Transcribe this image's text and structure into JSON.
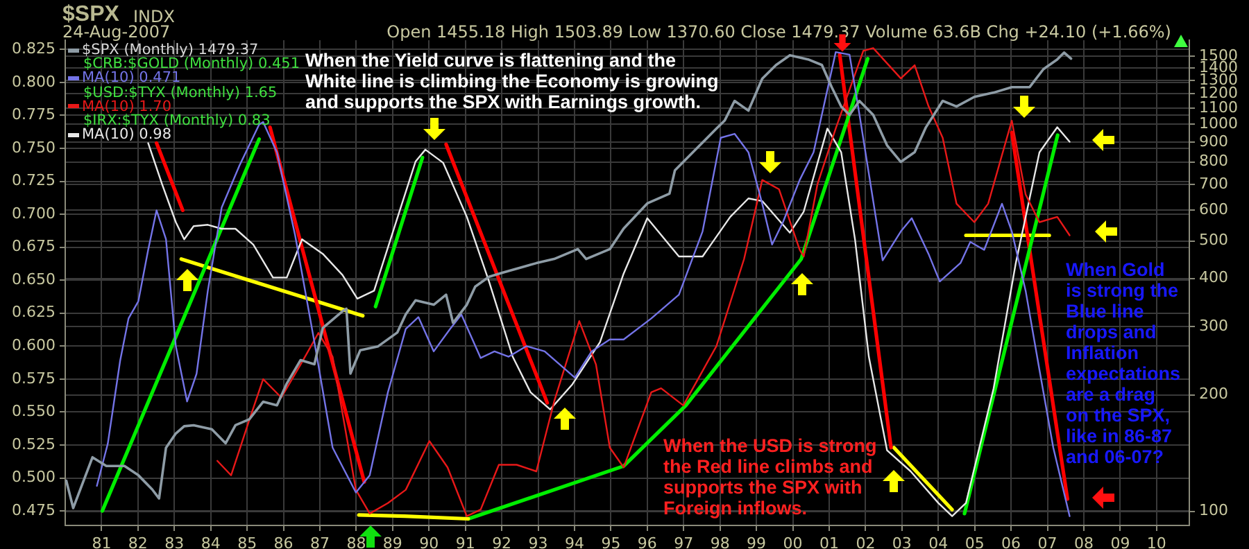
{
  "chart_data": {
    "type": "line",
    "title": "$SPX",
    "subtitle": "24-Aug-2007",
    "annotations": [
      "$CRB:$GOLD (Monthly) 0.451",
      "$USD:$TYX (Monthly) 1.65",
      "$IRX:$TYX (Monthly) 0.83",
      "INDX",
      "Open 1455.18 High 1503.89 Low 1370.60 Close 1479.37 Volume 63.6B Chg +24.10 (+1.66%)",
      "When the Yield curve is flattening and the\nWhite line is climbing the Economy is growing\nand supports the SPX with Earnings growth.",
      "When the USD is strong\nthe Red line climbs and\nsupports the SPX with\nForeign inflows.",
      "When Gold\nis strong the\nBlue line\ndrops and\nInflation\nexpectations\nare a drag\non the SPX,\nlike in 86-87\nand 06-07?"
    ],
    "xlim": [
      1980,
      2010.9
    ],
    "xticks": [
      {
        "value": 1981,
        "label": "81"
      },
      {
        "value": 1982,
        "label": "82"
      },
      {
        "value": 1983,
        "label": "83"
      },
      {
        "value": 1984,
        "label": "84"
      },
      {
        "value": 1985,
        "label": "85"
      },
      {
        "value": 1986,
        "label": "86"
      },
      {
        "value": 1987,
        "label": "87"
      },
      {
        "value": 1988,
        "label": "88"
      },
      {
        "value": 1989,
        "label": "89"
      },
      {
        "value": 1990,
        "label": "90"
      },
      {
        "value": 1991,
        "label": "91"
      },
      {
        "value": 1992,
        "label": "92"
      },
      {
        "value": 1993,
        "label": "93"
      },
      {
        "value": 1994,
        "label": "94"
      },
      {
        "value": 1995,
        "label": "95"
      },
      {
        "value": 1996,
        "label": "96"
      },
      {
        "value": 1997,
        "label": "97"
      },
      {
        "value": 1998,
        "label": "98"
      },
      {
        "value": 1999,
        "label": "99"
      },
      {
        "value": 2000,
        "label": "00"
      },
      {
        "value": 2001,
        "label": "01"
      },
      {
        "value": 2002,
        "label": "02"
      },
      {
        "value": 2003,
        "label": "03"
      },
      {
        "value": 2004,
        "label": "04"
      },
      {
        "value": 2005,
        "label": "05"
      },
      {
        "value": 2006,
        "label": "06"
      },
      {
        "value": 2007,
        "label": "07"
      },
      {
        "value": 2008,
        "label": "08"
      },
      {
        "value": 2009,
        "label": "09"
      },
      {
        "value": 2010,
        "label": "10"
      }
    ],
    "ylim": [
      0.464,
      0.832
    ],
    "yticks": [
      0.475,
      {
        "value": 0.5,
        "label": "0.500"
      },
      0.525,
      {
        "value": 0.55,
        "label": "0.550"
      },
      0.575,
      {
        "value": 0.6,
        "label": "0.600"
      },
      0.625,
      {
        "value": 0.65,
        "label": "0.650"
      },
      0.675,
      {
        "value": 0.7,
        "label": "0.700"
      },
      0.725,
      {
        "value": 0.75,
        "label": "0.750"
      },
      0.775,
      {
        "value": 0.8,
        "label": "0.800"
      },
      0.825
    ],
    "y2lim": [
      92,
      1650
    ],
    "y2ticks": [
      100,
      200,
      300,
      400,
      500,
      600,
      700,
      800,
      900,
      1000,
      1100,
      1200,
      1300,
      1400,
      1500
    ],
    "log": "y2",
    "grid": true,
    "legend": "top left",
    "marker": "none",
    "line_style": "solid",
    "series": [
      {
        "name": "$SPX (Monthly) 1479.37",
        "color": "#8e9ca6",
        "axis": "y2",
        "x": [
          1980.03,
          1980.22,
          1980.75,
          1981.13,
          1981.63,
          1982.01,
          1982.39,
          1982.58,
          1982.77,
          1983.04,
          1983.27,
          1983.53,
          1984.03,
          1984.41,
          1984.68,
          1985.06,
          1985.44,
          1985.82,
          1986.09,
          1986.47,
          1986.85,
          1987.08,
          1987.62,
          1987.73,
          1987.84,
          1988.11,
          1988.6,
          1989.13,
          1989.36,
          1989.63,
          1990.13,
          1990.47,
          1990.66,
          1991.04,
          1991.27,
          1991.65,
          1992.03,
          1992.57,
          1992.95,
          1993.44,
          1994.09,
          1994.32,
          1994.97,
          1995.35,
          1996.0,
          1996.61,
          1996.76,
          1997.37,
          1997.9,
          1998.13,
          1998.4,
          1998.78,
          1999.16,
          1999.54,
          1999.92,
          2000.42,
          2000.8,
          2001.07,
          2001.33,
          2001.56,
          2001.83,
          2002.21,
          2002.59,
          2002.97,
          2003.35,
          2003.66,
          2004.12,
          2004.5,
          2004.99,
          2005.52,
          2006.02,
          2006.51,
          2006.89,
          2007.27,
          2007.46,
          2007.65
        ],
        "values": [
          120,
          102,
          138,
          131,
          131,
          124,
          114,
          108,
          146,
          159,
          166,
          167,
          163,
          150,
          167,
          173,
          192,
          188,
          214,
          246,
          240,
          298,
          329,
          334,
          227,
          261,
          267,
          290,
          323,
          351,
          342,
          363,
          307,
          342,
          381,
          404,
          414,
          428,
          438,
          449,
          476,
          449,
          476,
          538,
          625,
          662,
          761,
          869,
          975,
          1024,
          1150,
          1085,
          1312,
          1424,
          1509,
          1472,
          1424,
          1248,
          1112,
          1058,
          1150,
          1058,
          883,
          800,
          848,
          983,
          1150,
          1112,
          1178,
          1208,
          1248,
          1248,
          1389,
          1472,
          1533,
          1479
        ]
      },
      {
        "name": "MA(10) 0.471",
        "color": "#7474e8",
        "x": [
          1980.87,
          1981.17,
          1981.51,
          1981.74,
          1982.01,
          1982.28,
          1982.51,
          1982.77,
          1983.04,
          1983.35,
          1983.61,
          1983.92,
          1984.3,
          1984.79,
          1985.33,
          1985.44,
          1985.82,
          1986.32,
          1986.85,
          1987.35,
          1987.99,
          1988.37,
          1988.87,
          1989.36,
          1989.71,
          1990.13,
          1990.58,
          1990.89,
          1991.42,
          1991.8,
          1992.19,
          1992.68,
          1993.18,
          1994.01,
          1994.47,
          1994.97,
          1995.35,
          1996.11,
          1996.87,
          1997.52,
          1998.02,
          1998.4,
          1998.78,
          1999.16,
          1999.43,
          1999.73,
          2000.19,
          2000.57,
          2001.18,
          2001.56,
          2001.83,
          2002.47,
          2002.97,
          2003.27,
          2003.73,
          2004.04,
          2004.61,
          2004.88,
          2005.26,
          2005.75,
          2006.02,
          2006.4,
          2006.78,
          2007.16,
          2007.61
        ],
        "values": [
          0.494,
          0.526,
          0.589,
          0.621,
          0.634,
          0.673,
          0.703,
          0.681,
          0.6,
          0.558,
          0.579,
          0.642,
          0.705,
          0.737,
          0.768,
          0.77,
          0.747,
          0.684,
          0.603,
          0.523,
          0.489,
          0.502,
          0.565,
          0.613,
          0.622,
          0.596,
          0.613,
          0.624,
          0.591,
          0.596,
          0.592,
          0.6,
          0.596,
          0.576,
          0.596,
          0.605,
          0.605,
          0.621,
          0.639,
          0.687,
          0.758,
          0.761,
          0.747,
          0.708,
          0.677,
          0.694,
          0.726,
          0.747,
          0.823,
          0.821,
          0.776,
          0.665,
          0.687,
          0.697,
          0.67,
          0.649,
          0.663,
          0.679,
          0.673,
          0.708,
          0.687,
          0.642,
          0.582,
          0.523,
          0.471
        ]
      },
      {
        "name": "MA(10) 1.70",
        "color": "#e81818",
        "x": [
          1984.18,
          1984.56,
          1985.06,
          1985.44,
          1985.94,
          1986.47,
          1986.96,
          1987.35,
          1987.99,
          1988.37,
          1988.87,
          1989.36,
          1990.01,
          1990.51,
          1991.04,
          1991.42,
          1991.92,
          1992.41,
          1992.95,
          1993.44,
          1994.13,
          1994.59,
          1994.97,
          1995.35,
          1996.11,
          1996.38,
          1996.99,
          1997.9,
          1998.66,
          1999.16,
          1999.62,
          2000.19,
          2000.3,
          2000.68,
          2001.18,
          2001.94,
          2002.21,
          2002.97,
          2003.35,
          2003.73,
          2004.12,
          2004.5,
          2004.99,
          2005.37,
          2006.02,
          2006.4,
          2006.78,
          2007.27,
          2007.61
        ],
        "values": [
          0.513,
          0.502,
          0.544,
          0.575,
          0.561,
          0.586,
          0.61,
          0.592,
          0.491,
          0.473,
          0.481,
          0.491,
          0.528,
          0.508,
          0.471,
          0.476,
          0.51,
          0.51,
          0.505,
          0.558,
          0.619,
          0.586,
          0.523,
          0.508,
          0.565,
          0.568,
          0.555,
          0.6,
          0.666,
          0.726,
          0.719,
          0.673,
          0.668,
          0.723,
          0.765,
          0.824,
          0.826,
          0.803,
          0.813,
          0.782,
          0.758,
          0.708,
          0.694,
          0.708,
          0.771,
          0.715,
          0.694,
          0.698,
          0.684
        ]
      },
      {
        "name": "MA(10) 0.98",
        "color": "#e8e8e8",
        "x": [
          1982.28,
          1982.66,
          1983.04,
          1983.27,
          1983.53,
          1983.92,
          1984.3,
          1984.68,
          1985.17,
          1985.71,
          1986.09,
          1986.51,
          1987.08,
          1987.62,
          1988.03,
          1988.49,
          1989.14,
          1989.63,
          1989.9,
          1990.39,
          1991.04,
          1991.65,
          1992.3,
          1992.79,
          1993.33,
          1993.94,
          1994.7,
          1995.35,
          1996.0,
          1996.87,
          1997.52,
          1998.28,
          1998.78,
          1999.16,
          1999.92,
          2000.3,
          2000.95,
          2001.33,
          2001.71,
          2002.09,
          2002.59,
          2003.24,
          2004.0,
          2004.38,
          2004.76,
          2005.52,
          2006.13,
          2006.78,
          2007.27,
          2007.61
        ],
        "values": [
          0.754,
          0.723,
          0.694,
          0.681,
          0.691,
          0.692,
          0.689,
          0.689,
          0.677,
          0.652,
          0.652,
          0.681,
          0.67,
          0.654,
          0.636,
          0.642,
          0.698,
          0.74,
          0.749,
          0.739,
          0.698,
          0.649,
          0.592,
          0.565,
          0.552,
          0.571,
          0.603,
          0.655,
          0.697,
          0.668,
          0.668,
          0.698,
          0.712,
          0.71,
          0.686,
          0.702,
          0.765,
          0.747,
          0.681,
          0.592,
          0.521,
          0.505,
          0.481,
          0.471,
          0.481,
          0.568,
          0.663,
          0.747,
          0.766,
          0.755
        ]
      },
      {
        "color": "#ff0000",
        "x": [
          1982.51,
          1983.23
        ],
        "values": [
          0.754,
          0.703
        ]
      },
      {
        "color": "#00ee00",
        "x": [
          1981.02,
          1985.33
        ],
        "values": [
          0.475,
          0.757
        ]
      },
      {
        "color": "#ff0000",
        "x": [
          1985.63,
          1988.22
        ],
        "values": [
          0.766,
          0.497
        ]
      },
      {
        "color": "#ffff00",
        "x": [
          1983.19,
          1988.18
        ],
        "values": [
          0.666,
          0.623
        ]
      },
      {
        "color": "#00ee00",
        "x": [
          1988.53,
          1989.82
        ],
        "values": [
          0.63,
          0.743
        ]
      },
      {
        "color": "#ff0000",
        "x": [
          1990.47,
          1993.25
        ],
        "values": [
          0.753,
          0.557
        ]
      },
      {
        "color": "#ffff00",
        "x": [
          1988.07,
          1989.33,
          1991.08
        ],
        "values": [
          0.472,
          0.471,
          0.469
        ]
      },
      {
        "color": "#00ee00",
        "x": [
          1991.08,
          1995.35,
          1997.06,
          2000.23,
          2002.06
        ],
        "values": [
          0.469,
          0.509,
          0.555,
          0.666,
          0.818
        ]
      },
      {
        "color": "#ff0000",
        "x": [
          2001.29,
          2002.7
        ],
        "values": [
          0.821,
          0.523
        ]
      },
      {
        "color": "#ffff00",
        "x": [
          2002.78,
          2004.38
        ],
        "values": [
          0.523,
          0.476
        ]
      },
      {
        "color": "#00ee00",
        "x": [
          2004.72,
          2007.28
        ],
        "values": [
          0.473,
          0.76
        ]
      },
      {
        "color": "#ff0000",
        "x": [
          2006.02,
          2007.55
        ],
        "values": [
          0.762,
          0.484
        ]
      },
      {
        "color": "#ffff00",
        "x": [
          2004.76,
          2007.05
        ],
        "values": [
          0.684,
          0.684
        ]
      }
    ]
  }
}
